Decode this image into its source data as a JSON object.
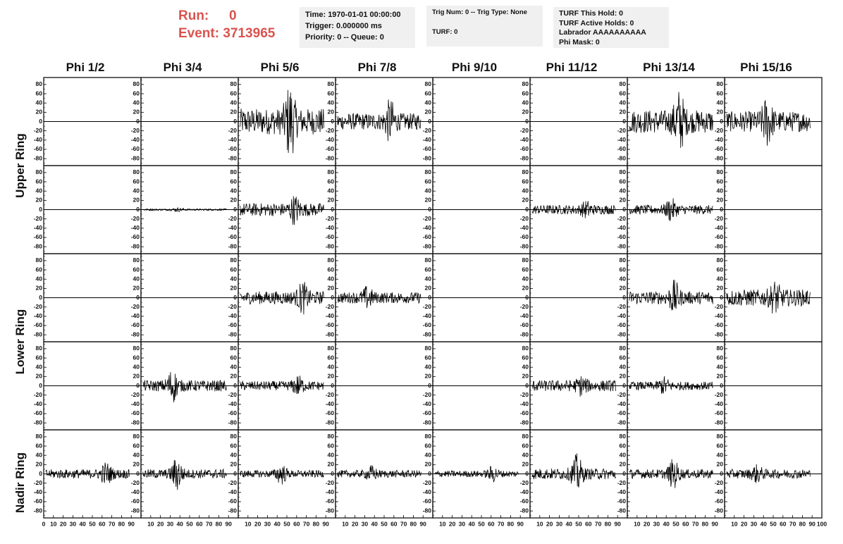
{
  "header": {
    "run_label": "Run:",
    "run_value": "0",
    "event_label": "Event:",
    "event_value": "3713965"
  },
  "info1": {
    "time": "Time: 1970-01-01 00:00:00",
    "trigger": "Trigger: 0.000000 ms",
    "priority": "Priority: 0 -- Queue: 0"
  },
  "info2": {
    "trig": "Trig Num: 0 -- Trig Type: None",
    "turf": "TURF: 0"
  },
  "info3": {
    "hold": "TURF This Hold: 0",
    "active": "TURF Active Holds: 0",
    "labrador": "Labrador AAAAAAAAAA",
    "mask": "Phi Mask: 0"
  },
  "columns": [
    "Phi 1/2",
    "Phi 3/4",
    "Phi 5/6",
    "Phi 7/8",
    "Phi 9/10",
    "Phi 11/12",
    "Phi 13/14",
    "Phi 15/16"
  ],
  "row_labels": [
    "Upper Ring",
    "Lower Ring",
    "Nadir Ring"
  ],
  "axes": {
    "y_ticks": [
      80,
      60,
      40,
      20,
      0,
      -20,
      -40,
      -60,
      -80
    ],
    "x_ticks": [
      10,
      20,
      30,
      40,
      50,
      60,
      70,
      80,
      90
    ],
    "x_origin": "0",
    "x_end": "100",
    "ylim": [
      -95,
      95
    ],
    "xlim": [
      0,
      100
    ]
  },
  "chart_data": {
    "type": "line",
    "rows": 5,
    "cols": 8,
    "amplitudes": [
      [
        0,
        0,
        28,
        18,
        0,
        0,
        25,
        22
      ],
      [
        0,
        2,
        14,
        0,
        0,
        10,
        10,
        0
      ],
      [
        0,
        0,
        14,
        12,
        0,
        0,
        14,
        18
      ],
      [
        0,
        12,
        10,
        0,
        0,
        12,
        9,
        0
      ],
      [
        10,
        10,
        8,
        8,
        7,
        12,
        10,
        10
      ]
    ],
    "peaks": [
      [
        0,
        0,
        88,
        52,
        0,
        0,
        75,
        60
      ],
      [
        0,
        5,
        35,
        0,
        0,
        22,
        28,
        0
      ],
      [
        0,
        0,
        38,
        28,
        0,
        0,
        40,
        40
      ],
      [
        0,
        40,
        25,
        0,
        0,
        25,
        22,
        0
      ],
      [
        28,
        40,
        25,
        20,
        20,
        45,
        35,
        22
      ]
    ]
  },
  "colors": {
    "header_red": "#d9534f",
    "panel_bg": "#f0f0f0",
    "trace": "#000000"
  }
}
